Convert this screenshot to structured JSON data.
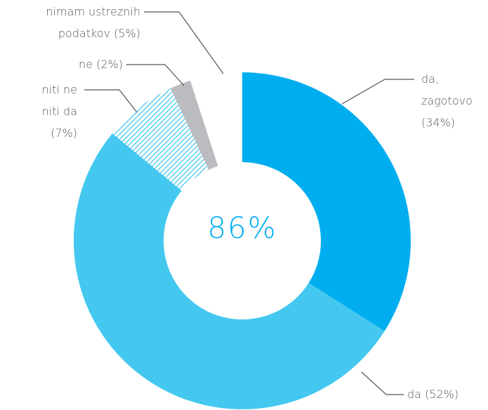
{
  "chart_data": {
    "type": "donut",
    "center_label": "86%",
    "categories": [
      "da, zagotovo",
      "da",
      "niti ne niti da",
      "ne",
      "nimam ustreznih podatkov"
    ],
    "values": [
      34,
      52,
      7,
      2,
      5
    ],
    "value_labels": [
      "(34%)",
      "(52%)",
      "(7%)",
      "(2%)",
      "(5%)"
    ],
    "colors": [
      "#00aeef",
      "#44c8f0",
      "#44c8f0",
      "#bbbcbf",
      null
    ],
    "hatched": [
      false,
      false,
      true,
      false,
      false
    ]
  }
}
